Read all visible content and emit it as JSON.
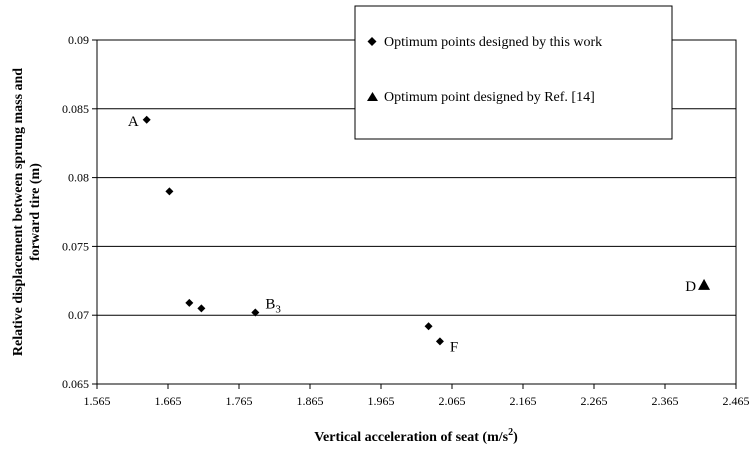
{
  "chart_data": {
    "type": "scatter",
    "xlabel": "Vertical acceleration of seat (m/s2)",
    "xlabel_parts": {
      "main": "Vertical acceleration of seat (m/s",
      "sup": "2",
      "close": ")"
    },
    "ylabel_lines": [
      "Relative displacement between sprung mass and",
      "forward tire (m)"
    ],
    "xlim": [
      1.565,
      2.465
    ],
    "ylim": [
      0.065,
      0.09
    ],
    "x_ticks": [
      1.565,
      1.665,
      1.765,
      1.865,
      1.965,
      2.065,
      2.165,
      2.265,
      2.365,
      2.465
    ],
    "x_tick_labels": [
      "1.565",
      "1.665",
      "1.765",
      "1.865",
      "1.965",
      "2.065",
      "2.165",
      "2.265",
      "2.365",
      "2.465"
    ],
    "y_ticks": [
      0.065,
      0.07,
      0.075,
      0.08,
      0.085,
      0.09
    ],
    "y_tick_labels": [
      "0.065",
      "0.07",
      "0.075",
      "0.08",
      "0.085",
      "0.09"
    ],
    "grid": "horizontal",
    "legend_placement": "top-right",
    "series": [
      {
        "name": "Optimum points designed by this work",
        "marker": "diamond",
        "points": [
          {
            "x": 1.635,
            "y": 0.0842,
            "label": "A"
          },
          {
            "x": 1.667,
            "y": 0.079,
            "label": ""
          },
          {
            "x": 1.695,
            "y": 0.0709,
            "label": ""
          },
          {
            "x": 1.712,
            "y": 0.0705,
            "label": ""
          },
          {
            "x": 1.788,
            "y": 0.0702,
            "label": "B3"
          },
          {
            "x": 2.032,
            "y": 0.0692,
            "label": ""
          },
          {
            "x": 2.048,
            "y": 0.0681,
            "label": "F"
          }
        ]
      },
      {
        "name": "Optimum point designed by Ref. [14]",
        "marker": "triangle",
        "points": [
          {
            "x": 2.42,
            "y": 0.0722,
            "label": "D"
          }
        ]
      }
    ]
  }
}
